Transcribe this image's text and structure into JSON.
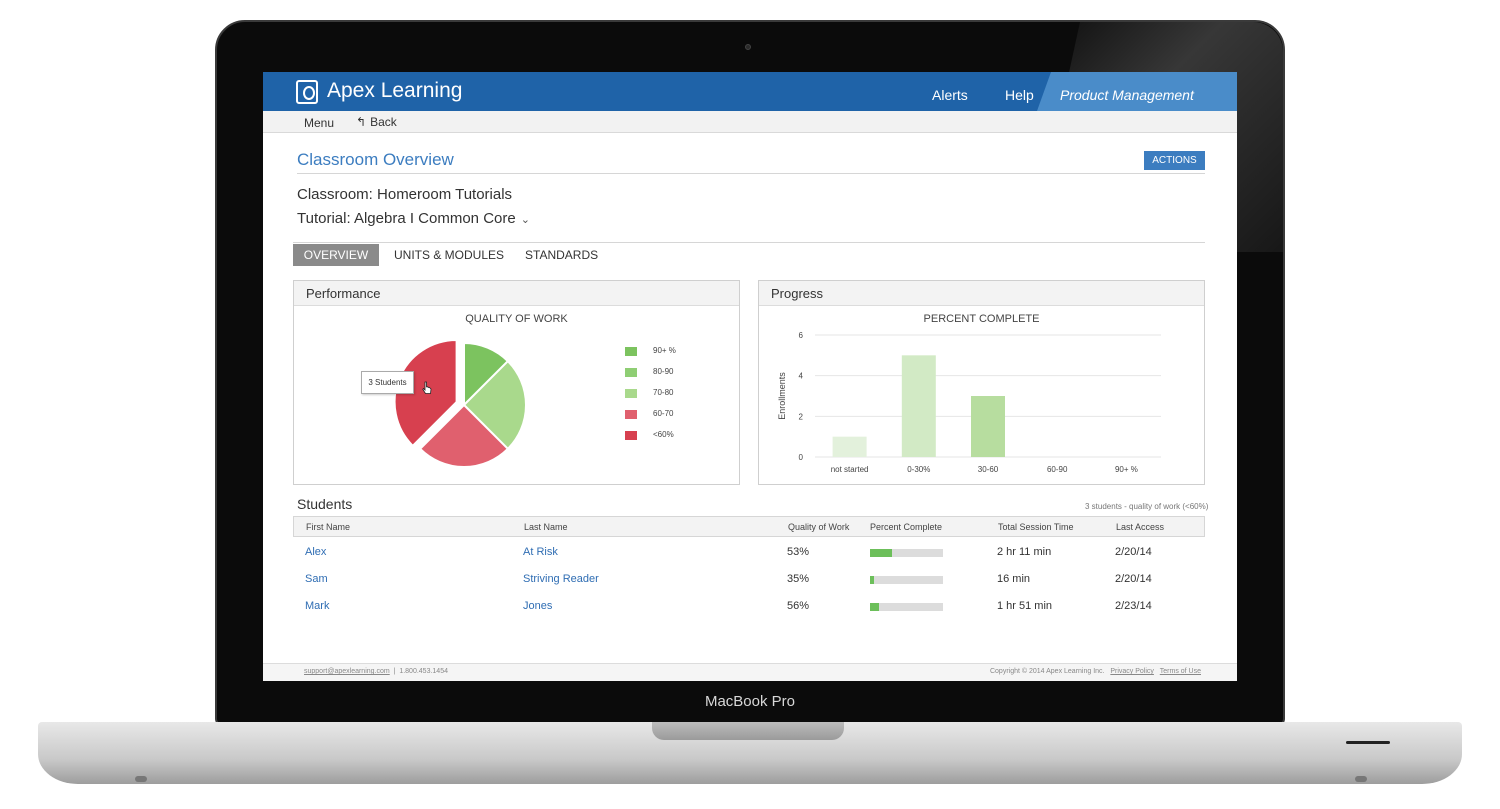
{
  "device": {
    "brand_label": "MacBook Pro"
  },
  "header": {
    "logo_text": "Apex Learning",
    "nav": {
      "alerts": "Alerts",
      "help": "Help",
      "product_management": "Product Management"
    }
  },
  "subnav": {
    "menu": "Menu",
    "back": "Back",
    "back_icon": "↰"
  },
  "page": {
    "title": "Classroom Overview",
    "actions_label": "ACTIONS",
    "classroom": "Classroom: Homeroom Tutorials",
    "tutorial": "Tutorial: Algebra I Common Core",
    "tutorial_chevron": "⌄"
  },
  "tabs": [
    {
      "label": "OVERVIEW",
      "active": true
    },
    {
      "label": "UNITS & MODULES",
      "active": false
    },
    {
      "label": "STANDARDS",
      "active": false
    }
  ],
  "performance": {
    "panel_title": "Performance",
    "tooltip": "3 Students",
    "chart_data": {
      "type": "pie",
      "title": "QUALITY OF WORK",
      "categories": [
        "90+ %",
        "80-90",
        "70-80",
        "60-70",
        "<60%"
      ],
      "values": [
        1,
        0,
        2,
        2,
        3
      ],
      "colors": [
        "#7cc35f",
        "#8fce74",
        "#a9d98c",
        "#e0606e",
        "#d7404f"
      ],
      "exploded": "<60%"
    }
  },
  "progress": {
    "panel_title": "Progress",
    "chart_data": {
      "type": "bar",
      "title": "PERCENT COMPLETE",
      "ylabel": "Enrollments",
      "categories": [
        "not started",
        "0-30%",
        "30-60",
        "60-90",
        "90+ %"
      ],
      "values": [
        1,
        5,
        3,
        0,
        0
      ],
      "colors": [
        "#e3f1dc",
        "#d2eac5",
        "#b7dd9f",
        "#b7dd9f",
        "#b7dd9f"
      ],
      "ylim": [
        0,
        6
      ],
      "yticks": [
        "0",
        "2",
        "4",
        "6"
      ],
      "grid": true
    }
  },
  "students": {
    "title": "Students",
    "note": "3 students - quality of work (<60%)",
    "columns": [
      "First Name",
      "Last Name",
      "Quality of Work",
      "Percent Complete",
      "Total Session Time",
      "Last Access"
    ],
    "rows": [
      {
        "first": "Alex",
        "last": "At Risk",
        "quality": "53%",
        "percent_complete": 0.3,
        "session": "2 hr 11 min",
        "last_access": "2/20/14"
      },
      {
        "first": "Sam",
        "last": "Striving Reader",
        "quality": "35%",
        "percent_complete": 0.06,
        "session": "16 min",
        "last_access": "2/20/14"
      },
      {
        "first": "Mark",
        "last": "Jones",
        "quality": "56%",
        "percent_complete": 0.12,
        "session": "1 hr 51 min",
        "last_access": "2/23/14"
      }
    ]
  },
  "footer": {
    "email": "support@apexlearning.com",
    "separator": "|",
    "phone": "1.800.453.1454",
    "copyright": "Copyright © 2014 Apex Learning Inc.",
    "privacy": "Privacy Policy",
    "terms": "Terms of Use"
  }
}
